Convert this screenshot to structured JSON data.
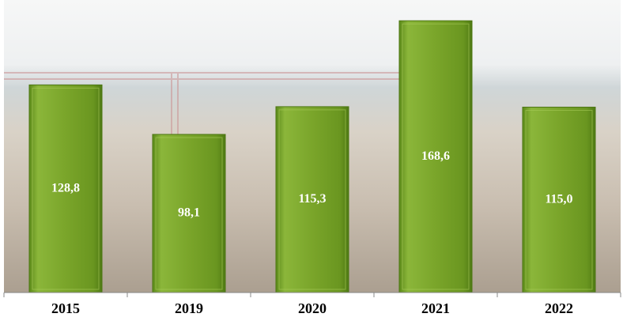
{
  "chart_data": {
    "type": "bar",
    "categories": [
      "2015",
      "2019",
      "2020",
      "2021",
      "2022"
    ],
    "values": [
      128.8,
      98.1,
      115.3,
      168.6,
      115.0
    ],
    "value_labels": [
      "128,8",
      "98,1",
      "115,3",
      "168,6",
      "115,0"
    ],
    "color": "#76a226",
    "ylim": [
      0,
      180
    ]
  }
}
